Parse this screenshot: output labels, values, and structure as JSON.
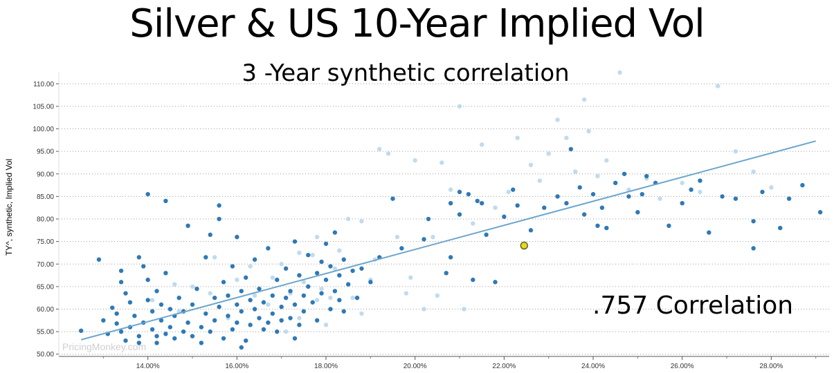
{
  "chart_data": {
    "type": "scatter",
    "title": "Silver & US 10-Year Implied Vol",
    "subtitle": "3 -Year synthetic correlation",
    "xlabel": "",
    "ylabel": "TY^, synthetic, Implied Vol",
    "annotation": ".757 Correlation",
    "watermark": "PricingMonkey.com",
    "xlim": [
      12.0,
      29.3
    ],
    "ylim": [
      49.5,
      112.5
    ],
    "x_ticks": [
      "14.00%",
      "16.00%",
      "18.00%",
      "20.00%",
      "22.00%",
      "24.00%",
      "26.00%",
      "28.00%"
    ],
    "y_ticks": [
      "50.00",
      "55.00",
      "60.00",
      "65.00",
      "70.00",
      "75.00",
      "80.00",
      "85.00",
      "90.00",
      "95.00",
      "100.00",
      "105.00",
      "110.00"
    ],
    "grid": "horizontal dotted",
    "colors": {
      "dark": "#2f79b5",
      "light": "#b9d7ec",
      "trend": "#6ba6cd",
      "highlight": "#f2d21c"
    },
    "trendline": {
      "x": [
        12.5,
        29.0
      ],
      "y": [
        53.2,
        97.3
      ]
    },
    "highlight": {
      "x": 22.45,
      "y": 74.1
    },
    "points_dark": [
      [
        12.5,
        55.2
      ],
      [
        12.9,
        71.0
      ],
      [
        13.0,
        57.5
      ],
      [
        13.1,
        54.5
      ],
      [
        13.2,
        60.3
      ],
      [
        13.3,
        56.8
      ],
      [
        13.3,
        59.0
      ],
      [
        13.4,
        66.0
      ],
      [
        13.4,
        68.5
      ],
      [
        13.5,
        63.5
      ],
      [
        13.5,
        53.0
      ],
      [
        13.6,
        56.0
      ],
      [
        13.6,
        61.5
      ],
      [
        13.7,
        58.5
      ],
      [
        13.8,
        71.5
      ],
      [
        13.8,
        54.0
      ],
      [
        13.9,
        57.0
      ],
      [
        13.9,
        69.5
      ],
      [
        14.0,
        62.0
      ],
      [
        14.0,
        66.5
      ],
      [
        14.1,
        55.5
      ],
      [
        14.1,
        59.5
      ],
      [
        14.2,
        52.5
      ],
      [
        14.2,
        64.0
      ],
      [
        14.3,
        57.5
      ],
      [
        14.3,
        61.0
      ],
      [
        14.4,
        54.5
      ],
      [
        14.4,
        68.0
      ],
      [
        14.5,
        56.0
      ],
      [
        14.5,
        60.0
      ],
      [
        14.6,
        53.5
      ],
      [
        14.0,
        85.5
      ],
      [
        14.4,
        84.0
      ],
      [
        14.6,
        58.5
      ],
      [
        14.7,
        62.5
      ],
      [
        14.8,
        55.0
      ],
      [
        14.8,
        59.5
      ],
      [
        14.9,
        78.5
      ],
      [
        14.9,
        57.0
      ],
      [
        15.0,
        54.0
      ],
      [
        15.0,
        61.0
      ],
      [
        15.1,
        64.5
      ],
      [
        15.2,
        56.0
      ],
      [
        15.3,
        59.0
      ],
      [
        15.3,
        71.5
      ],
      [
        15.4,
        76.5
      ],
      [
        15.4,
        55.0
      ],
      [
        15.5,
        62.5
      ],
      [
        15.5,
        57.5
      ],
      [
        15.6,
        83.0
      ],
      [
        15.6,
        80.0
      ],
      [
        15.6,
        60.5
      ],
      [
        15.7,
        53.5
      ],
      [
        15.7,
        66.0
      ],
      [
        15.8,
        58.5
      ],
      [
        15.8,
        63.0
      ],
      [
        15.9,
        55.5
      ],
      [
        15.9,
        69.5
      ],
      [
        16.0,
        61.0
      ],
      [
        16.0,
        57.0
      ],
      [
        16.0,
        76.0
      ],
      [
        16.1,
        64.0
      ],
      [
        16.1,
        59.5
      ],
      [
        16.2,
        53.0
      ],
      [
        16.2,
        67.0
      ],
      [
        16.3,
        56.5
      ],
      [
        16.3,
        62.0
      ],
      [
        16.4,
        60.0
      ],
      [
        16.4,
        71.0
      ],
      [
        16.5,
        58.0
      ],
      [
        16.5,
        64.5
      ],
      [
        16.6,
        55.5
      ],
      [
        16.6,
        61.5
      ],
      [
        16.7,
        57.0
      ],
      [
        16.7,
        73.5
      ],
      [
        16.8,
        59.0
      ],
      [
        16.8,
        63.0
      ],
      [
        16.9,
        55.0
      ],
      [
        16.9,
        66.5
      ],
      [
        17.0,
        60.5
      ],
      [
        17.0,
        57.5
      ],
      [
        17.1,
        62.5
      ],
      [
        17.1,
        69.0
      ],
      [
        17.2,
        58.0
      ],
      [
        17.2,
        64.0
      ],
      [
        17.3,
        61.0
      ],
      [
        17.3,
        75.0
      ],
      [
        17.4,
        56.5
      ],
      [
        17.4,
        67.5
      ],
      [
        17.5,
        63.0
      ],
      [
        17.5,
        59.5
      ],
      [
        17.6,
        72.0
      ],
      [
        17.6,
        65.0
      ],
      [
        17.7,
        61.5
      ],
      [
        17.8,
        68.0
      ],
      [
        17.8,
        57.5
      ],
      [
        17.9,
        70.5
      ],
      [
        17.9,
        63.5
      ],
      [
        18.0,
        66.5
      ],
      [
        18.0,
        74.5
      ],
      [
        18.1,
        60.0
      ],
      [
        18.1,
        69.5
      ],
      [
        18.2,
        64.0
      ],
      [
        18.2,
        77.0
      ],
      [
        18.3,
        67.5
      ],
      [
        18.3,
        62.0
      ],
      [
        18.4,
        71.0
      ],
      [
        18.5,
        65.5
      ],
      [
        18.6,
        68.5
      ],
      [
        18.7,
        62.5
      ],
      [
        18.8,
        69.0
      ],
      [
        19.0,
        66.0
      ],
      [
        19.2,
        71.5
      ],
      [
        19.5,
        84.5
      ],
      [
        20.2,
        75.5
      ],
      [
        20.3,
        80.0
      ],
      [
        20.7,
        68.0
      ],
      [
        20.8,
        83.5
      ],
      [
        21.0,
        81.0
      ],
      [
        21.0,
        86.0
      ],
      [
        21.2,
        85.5
      ],
      [
        21.4,
        84.0
      ],
      [
        21.5,
        83.5
      ],
      [
        21.6,
        76.5
      ],
      [
        21.8,
        66.0
      ],
      [
        22.0,
        80.5
      ],
      [
        22.2,
        86.5
      ],
      [
        22.6,
        77.5
      ],
      [
        22.9,
        82.5
      ],
      [
        23.2,
        85.0
      ],
      [
        23.4,
        83.5
      ],
      [
        23.5,
        95.5
      ],
      [
        23.7,
        87.0
      ],
      [
        23.8,
        81.0
      ],
      [
        24.0,
        85.5
      ],
      [
        24.2,
        82.5
      ],
      [
        24.3,
        78.0
      ],
      [
        24.5,
        88.0
      ],
      [
        24.7,
        90.0
      ],
      [
        24.8,
        85.0
      ],
      [
        25.0,
        81.5
      ],
      [
        25.1,
        85.5
      ],
      [
        25.2,
        89.5
      ],
      [
        25.4,
        88.0
      ],
      [
        25.7,
        78.5
      ],
      [
        26.0,
        83.5
      ],
      [
        26.2,
        86.5
      ],
      [
        26.4,
        88.5
      ],
      [
        26.6,
        77.0
      ],
      [
        26.9,
        85.0
      ],
      [
        27.2,
        84.5
      ],
      [
        27.6,
        73.5
      ],
      [
        27.6,
        79.5
      ],
      [
        27.8,
        86.0
      ],
      [
        28.2,
        78.0
      ],
      [
        28.4,
        84.5
      ],
      [
        28.7,
        87.5
      ],
      [
        29.1,
        81.5
      ],
      [
        21.3,
        66.5
      ],
      [
        20.8,
        71.5
      ],
      [
        22.3,
        83.0
      ],
      [
        24.1,
        78.5
      ],
      [
        19.7,
        73.5
      ],
      [
        18.4,
        59.5
      ],
      [
        17.3,
        53.5
      ],
      [
        16.1,
        51.5
      ],
      [
        15.2,
        52.5
      ],
      [
        14.2,
        54.0
      ],
      [
        13.8,
        52.5
      ],
      [
        13.4,
        55.0
      ]
    ],
    "points_light": [
      [
        14.7,
        59.5
      ],
      [
        15.0,
        65.0
      ],
      [
        15.5,
        71.5
      ],
      [
        16.0,
        66.5
      ],
      [
        16.4,
        63.0
      ],
      [
        16.8,
        67.0
      ],
      [
        17.0,
        70.0
      ],
      [
        17.2,
        63.5
      ],
      [
        17.4,
        58.0
      ],
      [
        17.5,
        66.0
      ],
      [
        17.7,
        72.0
      ],
      [
        17.8,
        62.0
      ],
      [
        17.9,
        64.5
      ],
      [
        18.0,
        56.5
      ],
      [
        18.1,
        62.5
      ],
      [
        18.2,
        69.0
      ],
      [
        18.3,
        73.0
      ],
      [
        18.5,
        80.0
      ],
      [
        18.6,
        62.5
      ],
      [
        18.8,
        79.5
      ],
      [
        19.0,
        66.5
      ],
      [
        19.2,
        95.5
      ],
      [
        19.4,
        94.5
      ],
      [
        19.6,
        76.0
      ],
      [
        19.8,
        63.5
      ],
      [
        19.9,
        67.0
      ],
      [
        20.0,
        93.0
      ],
      [
        20.2,
        60.0
      ],
      [
        20.4,
        76.0
      ],
      [
        20.6,
        92.5
      ],
      [
        20.8,
        86.5
      ],
      [
        21.0,
        105.0
      ],
      [
        21.1,
        60.0
      ],
      [
        21.3,
        79.0
      ],
      [
        21.5,
        96.5
      ],
      [
        21.8,
        82.5
      ],
      [
        22.1,
        86.0
      ],
      [
        22.3,
        98.0
      ],
      [
        22.6,
        92.0
      ],
      [
        22.8,
        88.5
      ],
      [
        23.0,
        94.5
      ],
      [
        23.2,
        102.0
      ],
      [
        23.4,
        98.0
      ],
      [
        23.6,
        90.5
      ],
      [
        23.8,
        106.5
      ],
      [
        23.9,
        99.5
      ],
      [
        24.1,
        89.5
      ],
      [
        24.3,
        93.0
      ],
      [
        24.6,
        112.5
      ],
      [
        24.8,
        86.5
      ],
      [
        25.2,
        89.0
      ],
      [
        25.5,
        84.5
      ],
      [
        26.0,
        88.0
      ],
      [
        26.4,
        86.0
      ],
      [
        26.8,
        109.5
      ],
      [
        27.2,
        95.0
      ],
      [
        27.6,
        90.5
      ],
      [
        28.0,
        87.0
      ],
      [
        17.8,
        76.0
      ],
      [
        17.4,
        72.5
      ],
      [
        16.7,
        61.0
      ],
      [
        16.3,
        69.5
      ],
      [
        15.8,
        58.0
      ],
      [
        18.8,
        59.0
      ],
      [
        19.1,
        71.0
      ],
      [
        20.5,
        63.0
      ],
      [
        17.1,
        55.0
      ],
      [
        15.4,
        63.5
      ],
      [
        14.6,
        65.5
      ],
      [
        14.1,
        62.0
      ]
    ]
  }
}
